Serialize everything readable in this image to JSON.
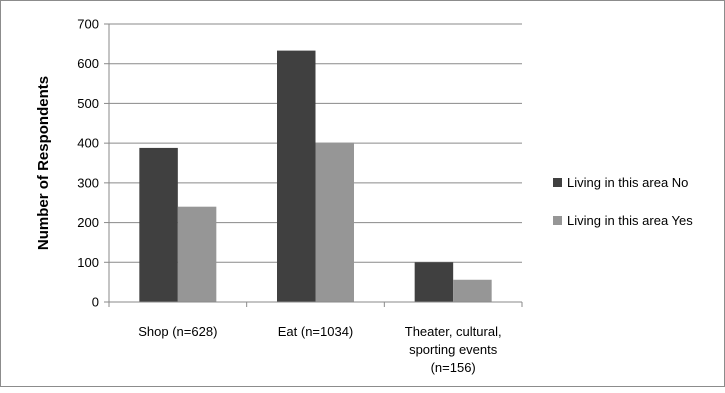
{
  "chart_data": {
    "type": "bar",
    "title": "",
    "xlabel": "",
    "ylabel": "Number of Respondents",
    "ylim": [
      0,
      700
    ],
    "yticks": [
      0,
      100,
      200,
      300,
      400,
      500,
      600,
      700
    ],
    "grid": true,
    "legend_position": "right",
    "categories": [
      [
        "Shop (n=628)"
      ],
      [
        "Eat (n=1034)"
      ],
      [
        "Theater, cultural,",
        "sporting events",
        "(n=156)"
      ]
    ],
    "series": [
      {
        "name": "Living in this area No",
        "color": "#404040",
        "values": [
          388,
          633,
          100
        ]
      },
      {
        "name": "Living in this area Yes",
        "color": "#969696",
        "values": [
          240,
          401,
          56
        ]
      }
    ]
  }
}
